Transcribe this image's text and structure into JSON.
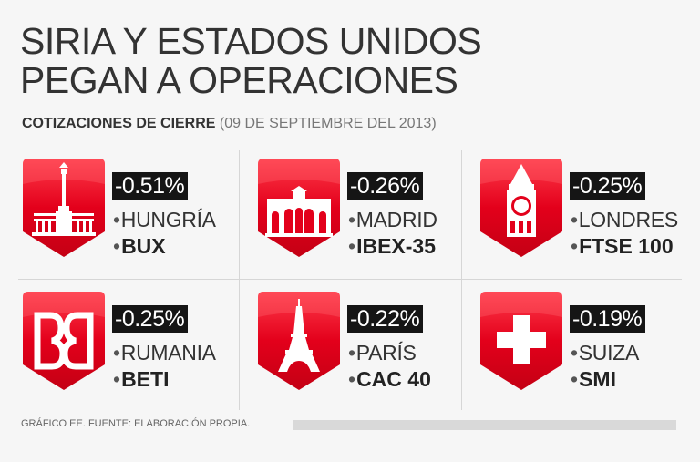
{
  "title": {
    "line1": "SIRIA Y ESTADOS UNIDOS",
    "line2": "PEGAN A OPERACIONES"
  },
  "subtitle": {
    "bold": "COTIZACIONES DE CIERRE",
    "normal": "(09 DE SEPTIEMBRE DEL 2013)"
  },
  "colors": {
    "badge_red": "#e3001b",
    "label_bg": "#151515"
  },
  "markets": [
    {
      "change": "-0.51%",
      "country": "HUNGRÍA",
      "index": "BUX",
      "icon": "monument-icon"
    },
    {
      "change": "-0.26%",
      "country": "MADRID",
      "index": "IBEX-35",
      "icon": "alcala-gate-icon"
    },
    {
      "change": "-0.25%",
      "country": "LONDRES",
      "index": "FTSE 100",
      "icon": "big-ben-icon"
    },
    {
      "change": "-0.25%",
      "country": "RUMANIA",
      "index": "BETI",
      "icon": "bvb-logo-icon"
    },
    {
      "change": "-0.22%",
      "country": "PARÍS",
      "index": "CAC 40",
      "icon": "eiffel-tower-icon"
    },
    {
      "change": "-0.19%",
      "country": "SUIZA",
      "index": "SMI",
      "icon": "swiss-cross-icon"
    }
  ],
  "footer": {
    "text": "GRÁFICO EE. FUENTE: ELABORACIÓN PROPIA."
  }
}
